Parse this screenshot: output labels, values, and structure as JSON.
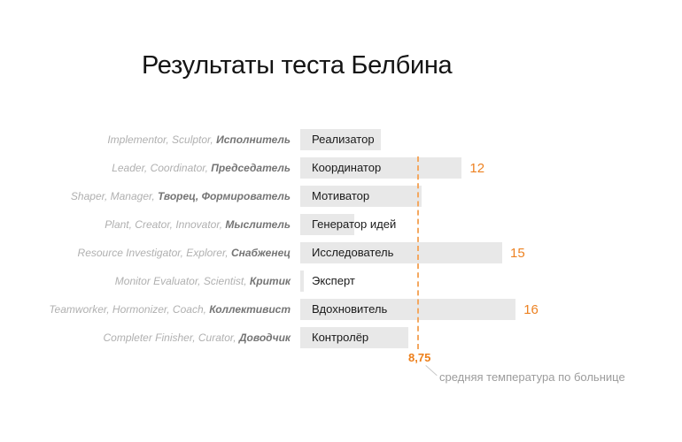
{
  "title": "Результаты теста Белбина",
  "colors": {
    "accent_orange": "#ed7f1a",
    "dashed_line_orange": "#f4a860",
    "bar_gray": "#e8e8e8",
    "left_label_en_gray": "#b0b0b0",
    "left_label_ru_gray": "#757575",
    "caption_gray": "#9c9c9c",
    "bar_text_black": "#1a1a1a"
  },
  "chart_data": {
    "type": "bar",
    "orientation": "horizontal",
    "title": "Результаты теста Белбина",
    "rows": [
      {
        "descriptor_en": "Implementor, Sculptor, ",
        "descriptor_ru": "Исполнитель",
        "category": "Реализатор",
        "value": 6,
        "value_label": ""
      },
      {
        "descriptor_en": "Leader, Coordinator, ",
        "descriptor_ru": "Председатель",
        "category": "Координатор",
        "value": 12,
        "value_label": "12"
      },
      {
        "descriptor_en": "Shaper, Manager, ",
        "descriptor_ru": "Творец, Формирователь",
        "category": "Мотиватор",
        "value": 9,
        "value_label": ""
      },
      {
        "descriptor_en": "Plant, Creator, Innovator, ",
        "descriptor_ru": "Мыслитель",
        "category": "Генератор идей",
        "value": 4,
        "value_label": ""
      },
      {
        "descriptor_en": "Resource Investigator, Explorer, ",
        "descriptor_ru": "Снабженец",
        "category": "Исследователь",
        "value": 15,
        "value_label": "15"
      },
      {
        "descriptor_en": "Monitor Evaluator, Scientist, ",
        "descriptor_ru": "Критик",
        "category": "Эксперт",
        "value": 0,
        "value_label": ""
      },
      {
        "descriptor_en": "Teamworker, Hormonizer, Coach, ",
        "descriptor_ru": "Коллективист",
        "category": "Вдохновитель",
        "value": 16,
        "value_label": "16"
      },
      {
        "descriptor_en": "Completer Finisher, Curator, ",
        "descriptor_ru": "Доводчик",
        "category": "Контролёр",
        "value": 8,
        "value_label": ""
      }
    ],
    "value_axis": {
      "min": 0,
      "max": 16,
      "gridlines": false,
      "ticks_visible": false
    },
    "reference_line": {
      "value": 8.75,
      "value_label": "8,75",
      "caption": "средняя температура по больнице"
    }
  }
}
